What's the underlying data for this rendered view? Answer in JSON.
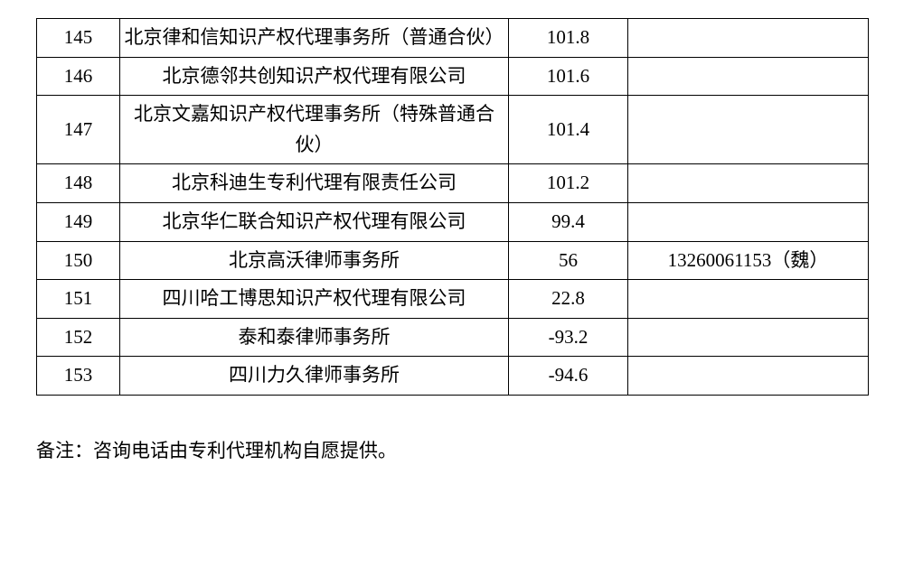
{
  "table": {
    "background_color": "#ffffff",
    "border_color": "#000000",
    "font_size": 21,
    "columns": {
      "num_width": 92,
      "name_width": 430,
      "score_width": 132,
      "phone_width": 266
    },
    "rows": [
      {
        "num": "145",
        "name": "北京律和信知识产权代理事务所（普通合伙）",
        "score": "101.8",
        "phone": ""
      },
      {
        "num": "146",
        "name": "北京德邻共创知识产权代理有限公司",
        "score": "101.6",
        "phone": ""
      },
      {
        "num": "147",
        "name": "北京文嘉知识产权代理事务所（特殊普通合伙）",
        "score": "101.4",
        "phone": ""
      },
      {
        "num": "148",
        "name": "北京科迪生专利代理有限责任公司",
        "score": "101.2",
        "phone": ""
      },
      {
        "num": "149",
        "name": "北京华仁联合知识产权代理有限公司",
        "score": "99.4",
        "phone": ""
      },
      {
        "num": "150",
        "name": "北京高沃律师事务所",
        "score": "56",
        "phone": "13260061153（魏）"
      },
      {
        "num": "151",
        "name": "四川哈工博思知识产权代理有限公司",
        "score": "22.8",
        "phone": ""
      },
      {
        "num": "152",
        "name": "泰和泰律师事务所",
        "score": "-93.2",
        "phone": ""
      },
      {
        "num": "153",
        "name": "四川力久律师事务所",
        "score": "-94.6",
        "phone": ""
      }
    ]
  },
  "footnote": "备注：咨询电话由专利代理机构自愿提供。"
}
